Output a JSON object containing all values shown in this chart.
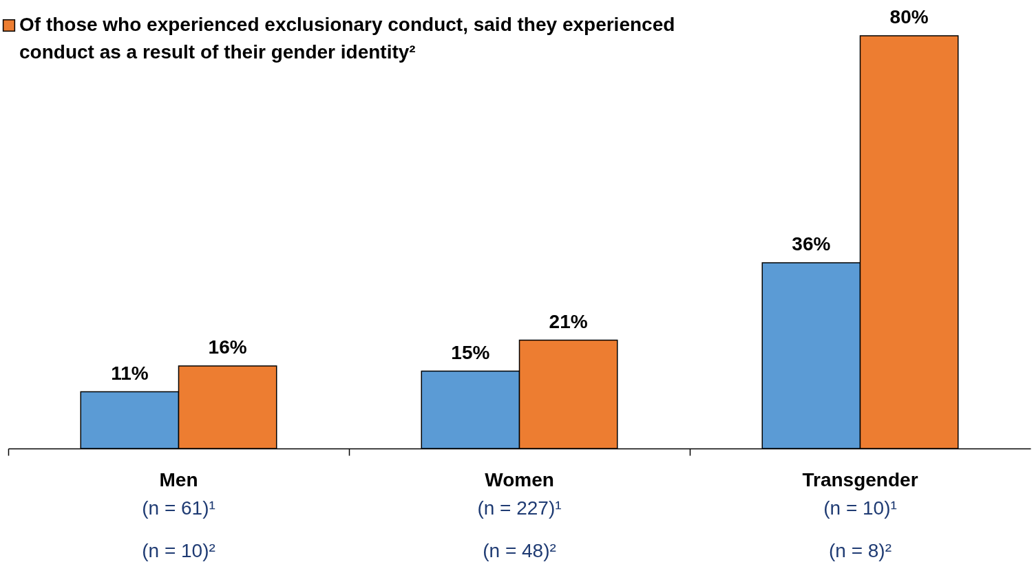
{
  "chart_data": {
    "type": "bar",
    "categories": [
      "Men\n(n = 61)¹\n(n = 10)²",
      "Women\n(n = 227)¹\n(n = 48)²",
      "Transgender\n(n = 10)¹\n(n = 8)²"
    ],
    "series": [
      {
        "color": "#5b9bd5",
        "values": [
          11,
          15,
          36
        ],
        "value_labels": [
          "11%",
          "15%",
          "36%"
        ]
      },
      {
        "name": "Of those who experienced exclusionary conduct, said they experienced conduct as a result of their gender identity²",
        "color": "#ed7d31",
        "values": [
          16,
          21,
          80
        ],
        "value_labels": [
          "16%",
          "21%",
          "80%"
        ]
      }
    ],
    "legend": "top left"
  }
}
